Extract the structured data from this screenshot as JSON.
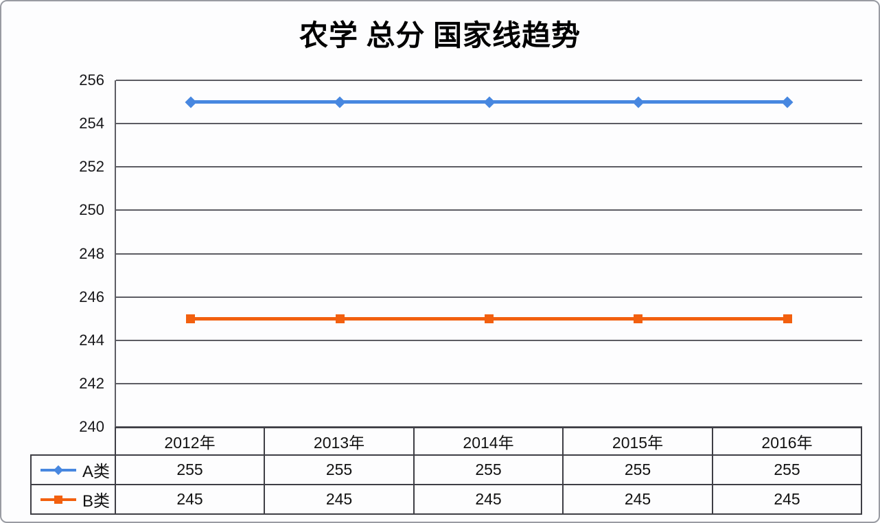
{
  "chart_data": {
    "type": "line",
    "title": "农学 总分 国家线趋势",
    "categories": [
      "2012年",
      "2013年",
      "2014年",
      "2015年",
      "2016年"
    ],
    "series": [
      {
        "name": "A类",
        "values": [
          255,
          255,
          255,
          255,
          255
        ],
        "color": "#4787e0",
        "marker": "diamond"
      },
      {
        "name": "B类",
        "values": [
          245,
          245,
          245,
          245,
          245
        ],
        "color": "#f2600f",
        "marker": "square"
      }
    ],
    "ylim": [
      240,
      256
    ],
    "yticks": [
      256,
      254,
      252,
      250,
      248,
      246,
      244,
      242,
      240
    ],
    "grid": "horizontal-only",
    "legend_position": "data-table-left",
    "data_table_shown": true
  },
  "colors": {
    "gridline": "#5c5c63",
    "table_border": "#3e3e45",
    "page_border": "#999ba2",
    "text": "#111111"
  }
}
